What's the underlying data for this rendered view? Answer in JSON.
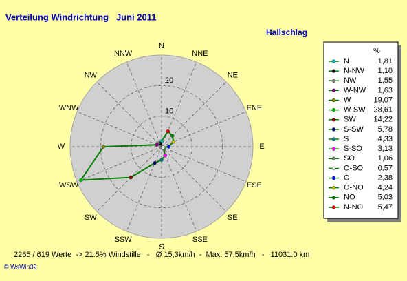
{
  "chart_data": {
    "type": "radar",
    "title": "Verteilung Windrichtung   Juni 2011",
    "subtitle": "Hallschlag",
    "categories": [
      "N",
      "NNE",
      "NE",
      "ENE",
      "E",
      "ESE",
      "SE",
      "SSE",
      "S",
      "SSW",
      "SW",
      "WSW",
      "W",
      "WNW",
      "NW",
      "NNW"
    ],
    "rlim": [
      0,
      30
    ],
    "rticks": [
      10,
      20
    ],
    "line_color": "#008000",
    "legend_header": "%",
    "series": {
      "names": [
        "N",
        "N-NW",
        "NW",
        "W-NW",
        "W",
        "W-SW",
        "SW",
        "S-SW",
        "S",
        "S-SO",
        "SO",
        "O-SO",
        "O",
        "O-NO",
        "NO",
        "N-NO"
      ],
      "values": [
        1.81,
        1.1,
        1.55,
        1.63,
        19.07,
        28.61,
        14.22,
        5.78,
        4.33,
        3.13,
        1.06,
        0.57,
        2.38,
        4.24,
        5.03,
        5.47
      ],
      "value_labels": [
        "1,81",
        "1,10",
        "1,55",
        "1,63",
        "19,07",
        "28,61",
        "14,22",
        "5,78",
        "4,33",
        "3,13",
        "1,06",
        "0,57",
        "2,38",
        "4,24",
        "5,03",
        "5,47"
      ],
      "colors": [
        "#00c0c0",
        "#000000",
        "#808080",
        "#800080",
        "#808000",
        "#00c000",
        "#800000",
        "#000080",
        "#008080",
        "#ff00ff",
        "#608060",
        "#e0ffe0",
        "#0000ff",
        "#c0c000",
        "#008000",
        "#ff0000"
      ]
    },
    "footer": "2265 / 619 Werte  -> 21.5% Windstille   -   Ø 15,3km/h  -  Max. 57,5km/h   -   11031.0 km",
    "copyright": "© WsWin32"
  }
}
